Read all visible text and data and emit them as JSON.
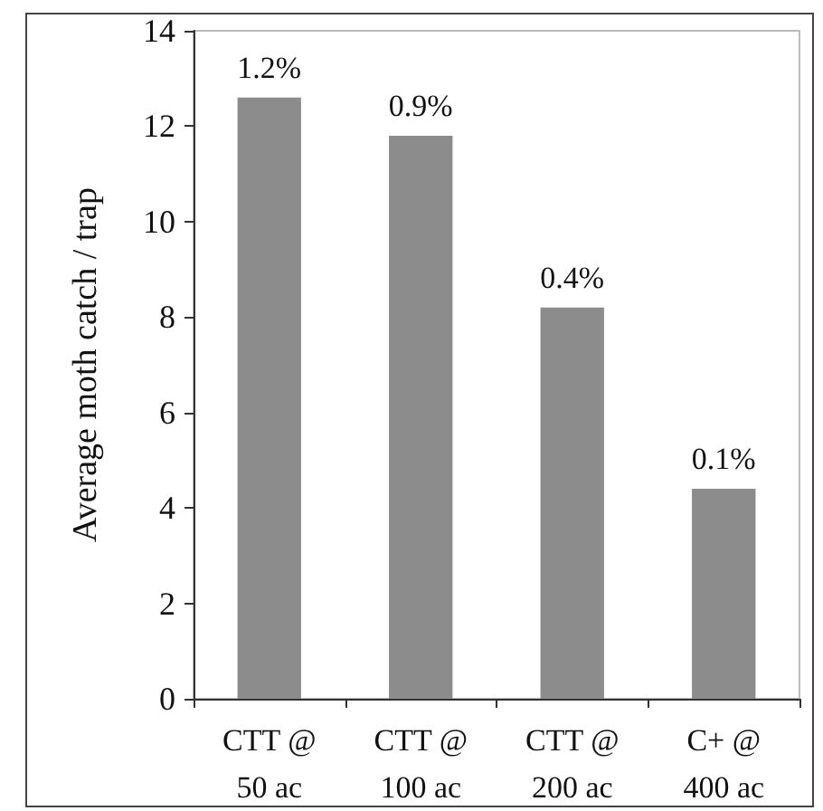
{
  "chart_data": {
    "type": "bar",
    "ylabel": "Average moth catch / trap",
    "categories": [
      "CTT @\n50 ac",
      "CTT @\n100 ac",
      "CTT @\n200 ac",
      "C+ @\n400 ac"
    ],
    "values": [
      12.6,
      11.8,
      8.2,
      4.4
    ],
    "color": "#8c8c8c",
    "annotations": [
      {
        "text": "1.2%",
        "x": "CTT @\n50 ac",
        "y": 12.6
      },
      {
        "text": "0.9%",
        "x": "CTT @\n100 ac",
        "y": 11.8
      },
      {
        "text": "0.4%",
        "x": "CTT @\n200 ac",
        "y": 8.2
      },
      {
        "text": "0.1%",
        "x": "C+ @\n400 ac",
        "y": 4.4
      }
    ],
    "ylim": [
      0,
      14
    ],
    "yticks": [
      0,
      2,
      4,
      6,
      8,
      10,
      12,
      14
    ],
    "grid": false
  }
}
